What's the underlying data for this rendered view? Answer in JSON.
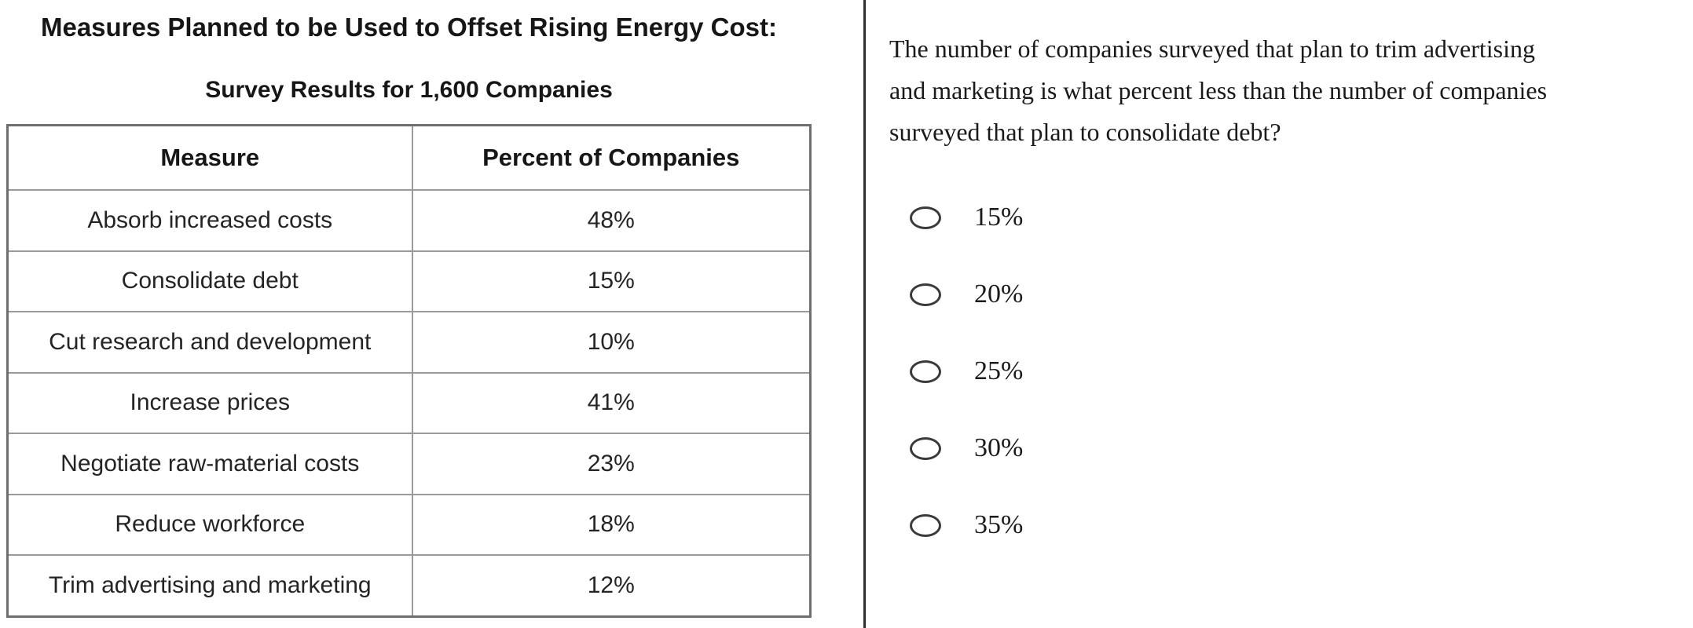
{
  "left": {
    "title": "Measures Planned to be Used to Offset Rising Energy Cost:",
    "subtitle": "Survey Results for 1,600 Companies",
    "table": {
      "columns": [
        "Measure",
        "Percent of Companies"
      ],
      "rows": [
        {
          "measure": "Absorb increased costs",
          "percent": "48%"
        },
        {
          "measure": "Consolidate debt",
          "percent": "15%"
        },
        {
          "measure": "Cut research and development",
          "percent": "10%"
        },
        {
          "measure": "Increase prices",
          "percent": "41%"
        },
        {
          "measure": "Negotiate raw-material costs",
          "percent": "23%"
        },
        {
          "measure": "Reduce workforce",
          "percent": "18%"
        },
        {
          "measure": "Trim advertising and marketing",
          "percent": "12%"
        }
      ]
    }
  },
  "right": {
    "question_lines": [
      "The number of companies surveyed that plan to trim advertising",
      "and marketing is what percent less than the number of companies",
      "surveyed that plan to consolidate debt?"
    ],
    "options": [
      "15%",
      "20%",
      "25%",
      "30%",
      "35%"
    ]
  },
  "chart_data": {
    "type": "table",
    "title": "Measures Planned to be Used to Offset Rising Energy Cost: Survey Results for 1,600 Companies",
    "categories": [
      "Absorb increased costs",
      "Consolidate debt",
      "Cut research and development",
      "Increase prices",
      "Negotiate raw-material costs",
      "Reduce workforce",
      "Trim advertising and marketing"
    ],
    "values": [
      48,
      15,
      10,
      41,
      23,
      18,
      12
    ],
    "value_unit": "percent of companies",
    "total_surveyed": 1600
  }
}
